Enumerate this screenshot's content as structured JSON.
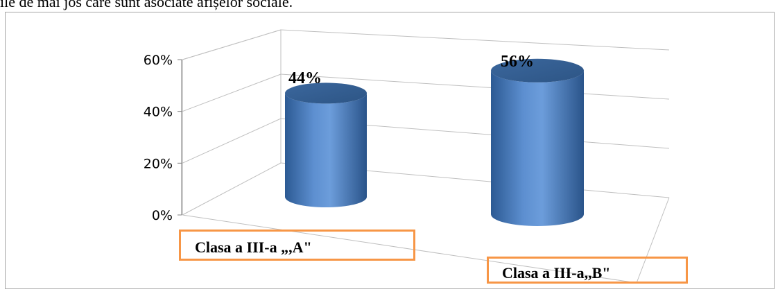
{
  "page": {
    "intro_text": "ile de mai jos care sunt asociate afișelor sociale."
  },
  "chart_data": {
    "type": "bar",
    "categories": [
      "Clasa  a III-a „,A\"",
      "Clasa a III-a,,B\""
    ],
    "values": [
      44,
      56
    ],
    "data_labels": [
      "44%",
      "56%"
    ],
    "yticks": [
      "0%",
      "20%",
      "40%",
      "60%"
    ],
    "ylim": [
      0,
      60
    ],
    "grid": true,
    "style": "3d-cylinder",
    "colors": {
      "bar": "#4f81bd",
      "category_box": "#f79646",
      "grid": "#bfbfbf"
    }
  }
}
